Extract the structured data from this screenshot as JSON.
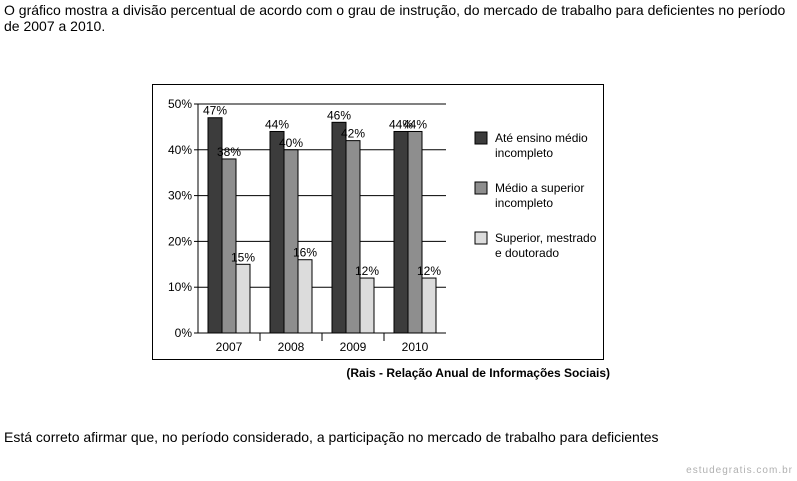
{
  "intro_text": "O gráfico mostra a divisão percentual de acordo com o grau de instrução, do mercado de trabalho para deficientes no período de 2007 a 2010.",
  "source_text": "(Rais - Relação Anual de Informações Sociais)",
  "question_text": "Está correto afirmar que, no período considerado, a participação no mercado de trabalho para deficientes",
  "watermark_text": "estudegratis.com.br",
  "chart_data": {
    "type": "bar",
    "title": "",
    "xlabel": "",
    "ylabel": "",
    "categories": [
      "2007",
      "2008",
      "2009",
      "2010"
    ],
    "ylim": [
      0,
      50
    ],
    "yticks": [
      0,
      10,
      20,
      30,
      40,
      50
    ],
    "ytick_labels": [
      "0%",
      "10%",
      "20%",
      "30%",
      "40%",
      "50%"
    ],
    "grid": true,
    "legend_position": "right",
    "series": [
      {
        "name": "Até ensino médio incompleto",
        "legend_lines": [
          "Até ensino médio",
          "incompleto"
        ],
        "color": "#3c3c3c",
        "values": [
          47,
          44,
          46,
          44
        ],
        "labels": [
          "47%",
          "44%",
          "46%",
          "44%"
        ]
      },
      {
        "name": "Médio a superior incompleto",
        "legend_lines": [
          "Médio a superior",
          "incompleto"
        ],
        "color": "#8e8e8e",
        "values": [
          38,
          40,
          42,
          44
        ],
        "labels": [
          "38%",
          "40%",
          "42%",
          "44%"
        ]
      },
      {
        "name": "Superior, mestrado e doutorado",
        "legend_lines": [
          "Superior, mestrado",
          "e doutorado"
        ],
        "color": "#dcdcdc",
        "values": [
          15,
          16,
          12,
          12
        ],
        "labels": [
          "15%",
          "16%",
          "12%",
          "12%"
        ]
      }
    ]
  }
}
